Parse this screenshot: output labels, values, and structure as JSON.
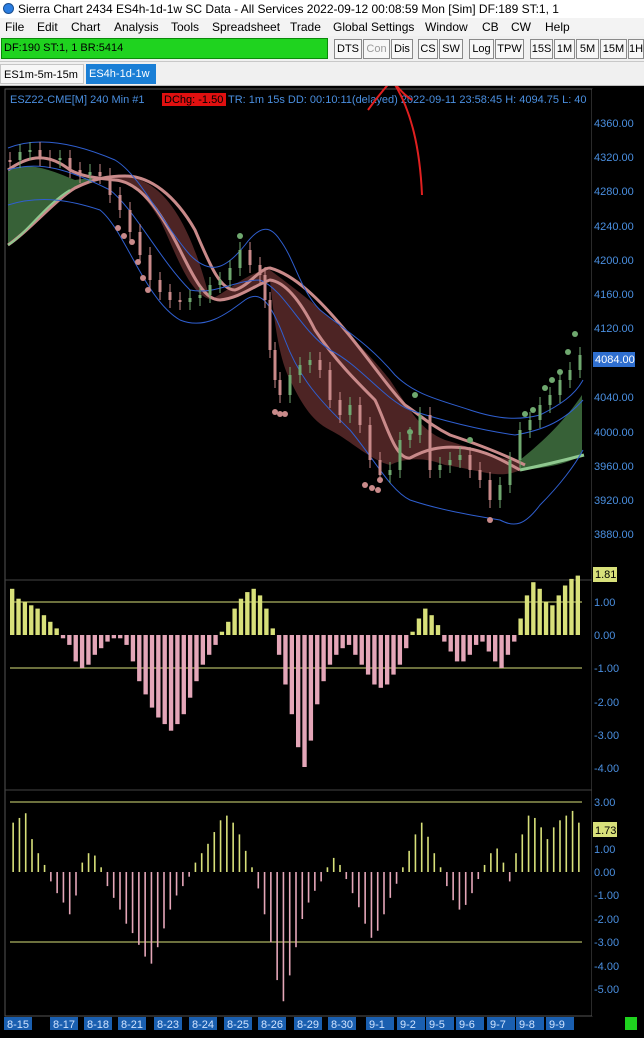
{
  "window": {
    "title": "Sierra Chart 2434 ES4h-1d-1w  SC Data - All Services 2022-09-12  00:08:59 Mon [Sim]  DF:189  ST:1, 1"
  },
  "menu": [
    "File",
    "Edit",
    "Chart",
    "Analysis",
    "Tools",
    "Spreadsheet",
    "Trade",
    "Global Settings",
    "Window",
    "CB",
    "CW",
    "Help"
  ],
  "toolbar": {
    "status": "DF:190  ST:1, 1  BR:5414",
    "buttons": [
      "DTS",
      "Con",
      "Dis",
      "CS",
      "SW",
      "Log",
      "TPW",
      "15S",
      "1M",
      "5M",
      "15M",
      "1H"
    ]
  },
  "tabs": [
    "ES1m-5m-15m",
    "ES4h-1d-1w"
  ],
  "chart": {
    "header_symbol": "ESZ22-CME[M]  240 Min   #1",
    "dchg_badge": "DChg: -1.50",
    "header_rest": "TR: 1m 15s DD: 00:10:11(delayed) 2022-09-11 23:58:45 H: 4094.75 L: 40",
    "price_axis": [
      "4360.00",
      "4320.00",
      "4280.00",
      "4240.00",
      "4200.00",
      "4160.00",
      "4120.00",
      "4084.00",
      "4040.00",
      "4000.00",
      "3960.00",
      "3920.00",
      "3880.00"
    ],
    "current_price": "4084.00",
    "osc1_axis": [
      "1.81",
      "1.00",
      "0.00",
      "-1.00",
      "-2.00",
      "-3.00",
      "-4.00"
    ],
    "osc1_value": "1.81",
    "osc2_axis": [
      "3.00",
      "1.73",
      "1.00",
      "0.00",
      "-1.00",
      "-2.00",
      "-3.00",
      "-4.00",
      "-5.00"
    ],
    "osc2_value": "1.73",
    "date_labels": [
      "8-15",
      "8-17",
      "8-18",
      "8-21",
      "8-23",
      "8-24",
      "8-25",
      "8-26",
      "8-29",
      "8-30",
      "9-1",
      "9-2",
      "9-5",
      "9-6",
      "9-7",
      "9-8",
      "9-9"
    ],
    "colors": {
      "up": "#6fa86f",
      "down": "#c98a8a",
      "band_fill_down": "#5a2a2a",
      "band_fill_up": "#3d6b3d",
      "envelope": "#2f5fd0",
      "osc_up": "#d8e07a",
      "osc_down": "#e4a6b8",
      "axis_text": "#4a8fe0",
      "annotation": "#e02020"
    }
  }
}
